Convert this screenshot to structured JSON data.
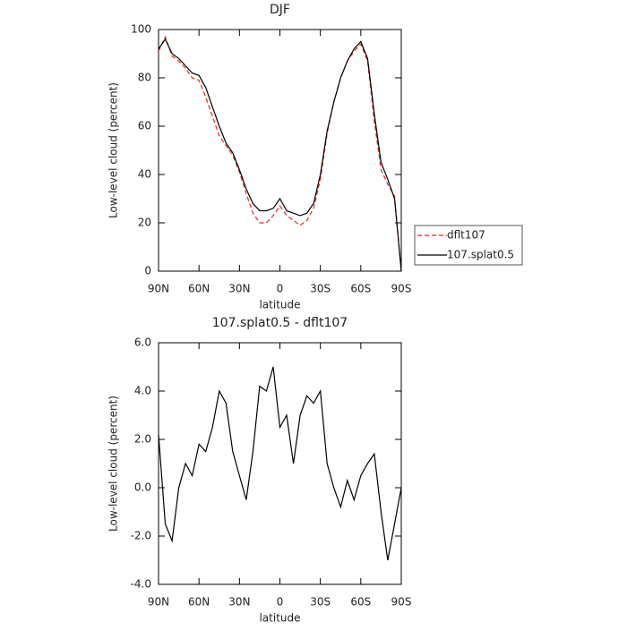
{
  "chart_data": [
    {
      "type": "line",
      "title": "DJF",
      "x_label": "latitude",
      "y_label": "Low-level cloud (percent)",
      "x": [
        90,
        85,
        80,
        75,
        70,
        65,
        60,
        55,
        50,
        45,
        40,
        35,
        30,
        25,
        20,
        15,
        10,
        5,
        0,
        -5,
        -10,
        -15,
        -20,
        -25,
        -30,
        -35,
        -40,
        -45,
        -50,
        -55,
        -60,
        -65,
        -70,
        -75,
        -80,
        -85,
        -90
      ],
      "xlim": [
        90,
        -90
      ],
      "xticks": [
        {
          "value": 90,
          "label": "90N"
        },
        {
          "value": 60,
          "label": "60N"
        },
        {
          "value": 30,
          "label": "30N"
        },
        0,
        {
          "value": -30,
          "label": "30S"
        },
        {
          "value": -60,
          "label": "60S"
        },
        {
          "value": -90,
          "label": "90S"
        }
      ],
      "ylim": [
        0,
        100
      ],
      "yticks": [
        0,
        20,
        40,
        60,
        80,
        100
      ],
      "series": [
        {
          "name": "dflt107",
          "color": "#e8261f",
          "dash": true,
          "values": [
            91,
            97,
            89,
            87,
            84,
            80,
            79,
            72,
            64,
            56,
            52,
            48,
            41,
            32,
            24,
            20,
            20,
            23,
            27,
            23,
            21,
            19,
            21,
            26,
            38,
            57,
            70,
            80,
            87,
            91,
            94,
            87,
            62,
            42,
            36,
            31,
            0
          ]
        },
        {
          "name": "107.splat0.5",
          "color": "#000000",
          "dash": false,
          "values": [
            92,
            96,
            90,
            88,
            85,
            82,
            81,
            76,
            68,
            60,
            53,
            49,
            42,
            34,
            28,
            25,
            25,
            26,
            30,
            25,
            24,
            23,
            24,
            28,
            40,
            58,
            70,
            80,
            87,
            92,
            95,
            88,
            65,
            45,
            38,
            30,
            0
          ]
        }
      ]
    },
    {
      "type": "line",
      "title": "107.splat0.5 - dflt107",
      "x_label": "latitude",
      "y_label": "Low-level cloud (percent)",
      "x": [
        90,
        85,
        80,
        75,
        70,
        65,
        60,
        55,
        50,
        45,
        40,
        35,
        30,
        25,
        20,
        15,
        10,
        5,
        0,
        -5,
        -10,
        -15,
        -20,
        -25,
        -30,
        -35,
        -40,
        -45,
        -50,
        -55,
        -60,
        -65,
        -70,
        -75,
        -80,
        -85,
        -90
      ],
      "xlim": [
        90,
        -90
      ],
      "xticks": [
        {
          "value": 90,
          "label": "90N"
        },
        {
          "value": 60,
          "label": "60N"
        },
        {
          "value": 30,
          "label": "30N"
        },
        0,
        {
          "value": -30,
          "label": "30S"
        },
        {
          "value": -60,
          "label": "60S"
        },
        {
          "value": -90,
          "label": "90S"
        }
      ],
      "ylim": [
        -4,
        6
      ],
      "yticks": [
        {
          "value": -4,
          "label": "-4.0"
        },
        {
          "value": -2,
          "label": "-2.0"
        },
        {
          "value": 0,
          "label": "0.0"
        },
        {
          "value": 2,
          "label": "2.0"
        },
        {
          "value": 4,
          "label": "4.0"
        },
        {
          "value": 6,
          "label": "6.0"
        }
      ],
      "series": [
        {
          "name": null,
          "color": "#000000",
          "dash": false,
          "values": [
            2.2,
            -1.5,
            -2.2,
            0.0,
            1.0,
            0.5,
            1.8,
            1.5,
            2.5,
            4.0,
            3.5,
            1.5,
            0.5,
            -0.5,
            1.5,
            4.2,
            4.0,
            5.0,
            2.5,
            3.0,
            1.0,
            3.0,
            3.8,
            3.5,
            4.0,
            1.0,
            0.0,
            -0.8,
            0.3,
            -0.5,
            0.5,
            1.0,
            1.4,
            -1.0,
            -3.0,
            -1.5,
            0.0
          ]
        }
      ]
    }
  ]
}
